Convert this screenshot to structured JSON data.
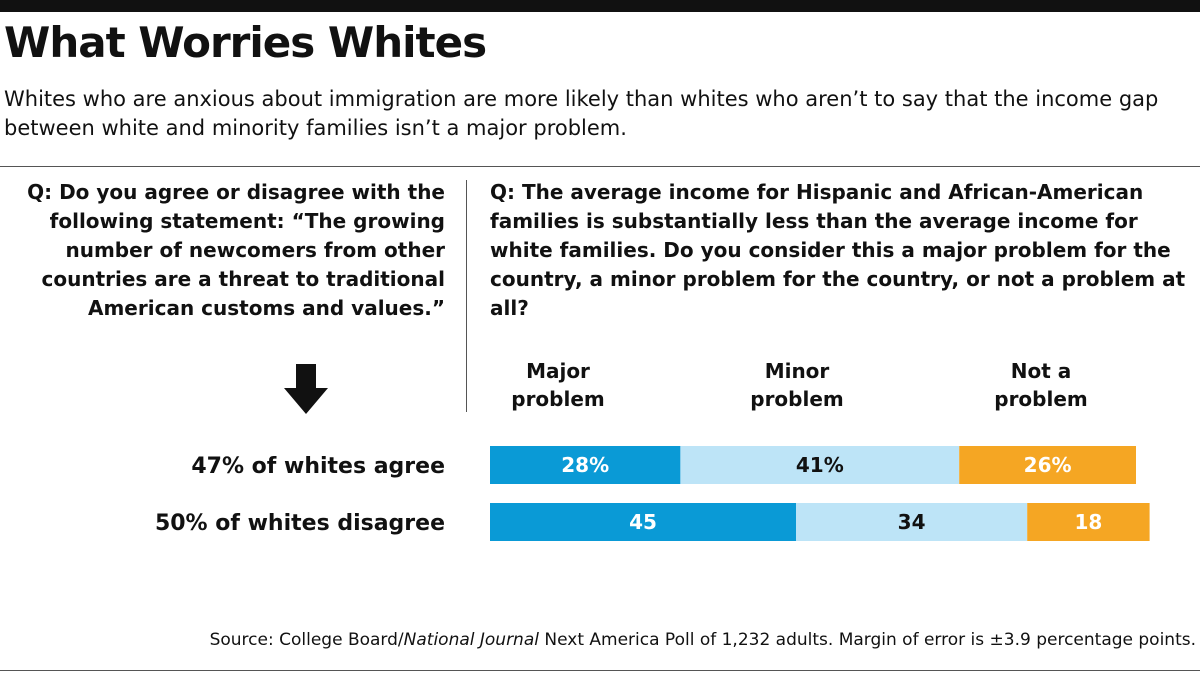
{
  "header": {
    "title": "What Worries Whites",
    "subtitle": "Whites who are anxious about immigration are more likely than whites who aren’t to say that the income gap between white and minority families isn’t a major problem."
  },
  "questions": {
    "left": "Q: Do you agree or disagree with the following statement:  “The growing number of newcomers from other countries are a threat to traditional American customs and values.”",
    "right": "Q: The average income for Hispanic and African-American families is substantially less than the average income for white families. Do you consider this a major problem for the country, a minor problem for the country, or not a problem at all?"
  },
  "icons": {
    "arrow": "down-arrow-icon"
  },
  "chart_data": {
    "type": "bar",
    "orientation": "horizontal",
    "stacked": true,
    "categories": [
      "47% of whites agree",
      "50% of whites disagree"
    ],
    "series": [
      {
        "name": "Major problem",
        "values": [
          28,
          45
        ],
        "labels": [
          "28%",
          "45"
        ],
        "color": "#0a9ad6"
      },
      {
        "name": "Minor problem",
        "values": [
          41,
          34
        ],
        "labels": [
          "41%",
          "34"
        ],
        "color": "#bde4f7"
      },
      {
        "name": "Not a problem",
        "values": [
          26,
          18
        ],
        "labels": [
          "26%",
          "18"
        ],
        "color": "#f5a623"
      }
    ],
    "legend_position": "top",
    "xlim": [
      0,
      100
    ],
    "grid": false
  },
  "source": {
    "prefix": "Source: College Board/",
    "italic": "National Journal",
    "suffix": " Next America Poll of 1,232 adults. Margin of error is ±3.9 percentage points."
  }
}
